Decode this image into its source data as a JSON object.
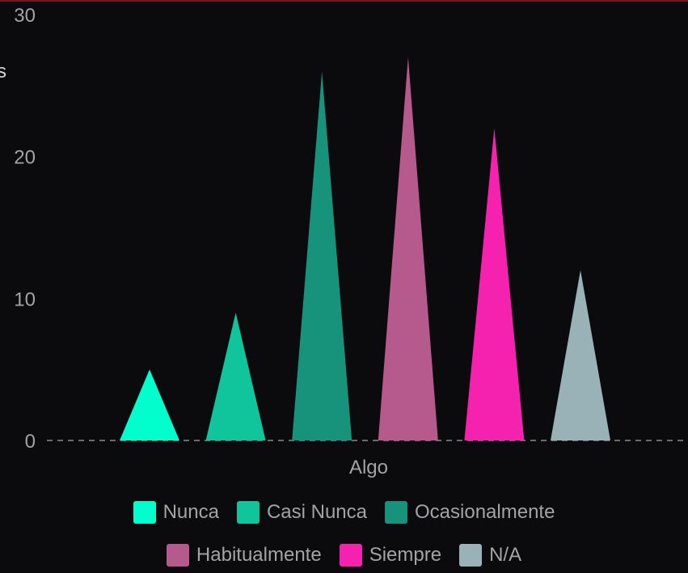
{
  "chart_data": {
    "type": "bar",
    "bar_shape": "triangle",
    "categories": [
      "Algo"
    ],
    "series": [
      {
        "name": "Nunca",
        "values": [
          5
        ],
        "color": "#00ffcc"
      },
      {
        "name": "Casi Nunca",
        "values": [
          9
        ],
        "color": "#10c49c"
      },
      {
        "name": "Ocasionalmente",
        "values": [
          26
        ],
        "color": "#16937a"
      },
      {
        "name": "Habitualmente",
        "values": [
          27
        ],
        "color": "#b65a8e"
      },
      {
        "name": "Siempre",
        "values": [
          22
        ],
        "color": "#f522b0"
      },
      {
        "name": "N/A",
        "values": [
          12
        ],
        "color": "#98b2b8"
      }
    ],
    "y_ticks": [
      "0",
      "10",
      "20",
      "30"
    ],
    "ylim": [
      0,
      30
    ],
    "ylabel_visible_fragment": "s",
    "grid": false,
    "zero_line": "dashed",
    "legend_position": "bottom",
    "colors": {
      "background": "#0b0b0d",
      "text": "#a3a3a3",
      "zero_line": "#6b6b6b",
      "top_rule": "#7a1422"
    }
  }
}
